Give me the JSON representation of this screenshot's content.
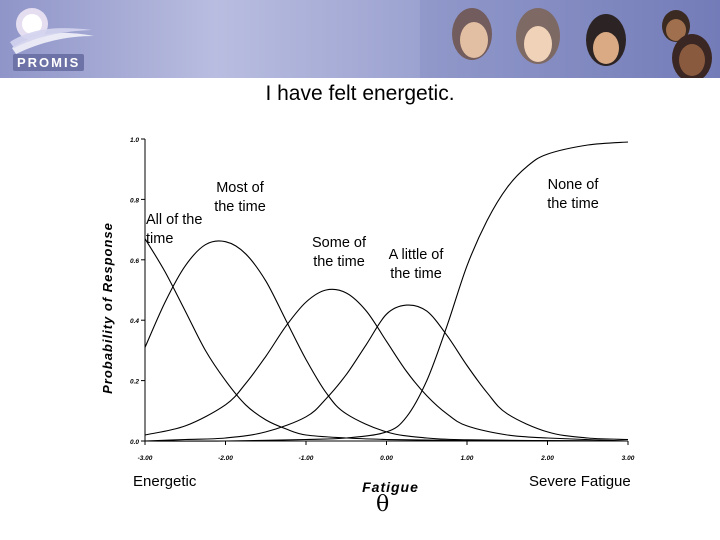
{
  "header": {
    "logo_text": "PROMIS",
    "title": "I have felt energetic."
  },
  "chart_data": {
    "type": "line",
    "ylabel": "Probability of Response",
    "xlabel": "Fatigue",
    "theta_symbol": "θ",
    "xlim": [
      -3.0,
      3.0
    ],
    "ylim": [
      0.0,
      1.0
    ],
    "x_ticks": [
      "-3.00",
      "-2.00",
      "-1.00",
      "0.00",
      "1.00",
      "2.00",
      "3.00"
    ],
    "y_ticks": [
      "0.0",
      "0.2",
      "0.4",
      "0.6",
      "0.8",
      "1.0"
    ],
    "left_end_label": "Energetic",
    "right_end_label": "Severe Fatigue",
    "grid": false,
    "series": [
      {
        "name": "All of the time",
        "label_lines": [
          "All of the",
          "time"
        ],
        "x": [
          -3.0,
          -2.75,
          -2.5,
          -2.25,
          -2.0,
          -1.75,
          -1.5,
          -1.25,
          -1.0,
          -0.5,
          0.0,
          0.5,
          1.0,
          2.0,
          3.0
        ],
        "y": [
          0.67,
          0.56,
          0.43,
          0.3,
          0.2,
          0.12,
          0.07,
          0.04,
          0.02,
          0.01,
          0.005,
          0.003,
          0.002,
          0.001,
          0.0
        ]
      },
      {
        "name": "Most of the time",
        "label_lines": [
          "Most of",
          "the time"
        ],
        "x": [
          -3.0,
          -2.75,
          -2.5,
          -2.25,
          -2.0,
          -1.75,
          -1.5,
          -1.25,
          -1.0,
          -0.75,
          -0.5,
          0.0,
          0.5,
          1.0,
          2.0,
          3.0
        ],
        "y": [
          0.31,
          0.46,
          0.58,
          0.65,
          0.66,
          0.62,
          0.53,
          0.4,
          0.27,
          0.16,
          0.09,
          0.03,
          0.01,
          0.004,
          0.001,
          0.0
        ]
      },
      {
        "name": "Some of the time",
        "label_lines": [
          "Some of",
          "the time"
        ],
        "x": [
          -3.0,
          -2.5,
          -2.0,
          -1.75,
          -1.5,
          -1.25,
          -1.0,
          -0.75,
          -0.5,
          -0.25,
          0.0,
          0.25,
          0.5,
          0.75,
          1.0,
          1.5,
          2.0,
          3.0
        ],
        "y": [
          0.02,
          0.05,
          0.12,
          0.19,
          0.28,
          0.38,
          0.46,
          0.5,
          0.49,
          0.43,
          0.33,
          0.23,
          0.15,
          0.09,
          0.05,
          0.02,
          0.01,
          0.0
        ]
      },
      {
        "name": "A little of the time",
        "label_lines": [
          "A little of",
          "the time"
        ],
        "x": [
          -3.0,
          -2.5,
          -2.0,
          -1.5,
          -1.0,
          -0.75,
          -0.5,
          -0.25,
          0.0,
          0.25,
          0.5,
          0.75,
          1.0,
          1.25,
          1.5,
          2.0,
          2.5,
          3.0
        ],
        "y": [
          0.0,
          0.005,
          0.01,
          0.03,
          0.08,
          0.14,
          0.22,
          0.32,
          0.42,
          0.45,
          0.43,
          0.35,
          0.25,
          0.16,
          0.09,
          0.03,
          0.01,
          0.005
        ]
      },
      {
        "name": "None of the time",
        "label_lines": [
          "None of",
          "the time"
        ],
        "x": [
          -3.0,
          -2.0,
          -1.0,
          -0.5,
          0.0,
          0.25,
          0.5,
          0.75,
          1.0,
          1.25,
          1.5,
          1.75,
          2.0,
          2.5,
          3.0
        ],
        "y": [
          0.0,
          0.0,
          0.005,
          0.01,
          0.03,
          0.08,
          0.2,
          0.38,
          0.58,
          0.73,
          0.84,
          0.91,
          0.95,
          0.98,
          0.99
        ]
      }
    ]
  }
}
